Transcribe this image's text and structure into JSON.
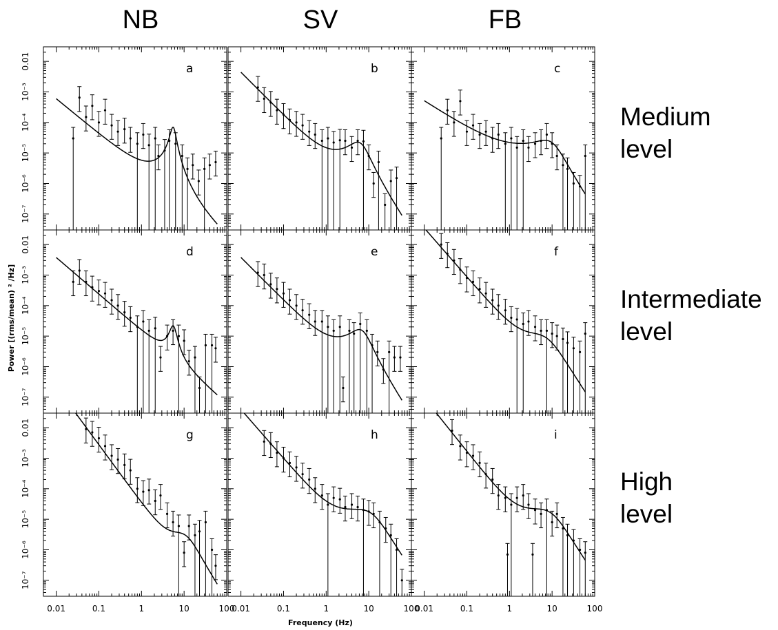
{
  "figure": {
    "column_titles": [
      "NB",
      "SV",
      "FB"
    ],
    "row_labels": [
      [
        "Medium",
        "level"
      ],
      [
        "Intermediate",
        "level"
      ],
      [
        "High",
        "level"
      ]
    ],
    "xlabel": "Frequency (Hz)",
    "ylabel": "Power [(rms/mean) ² /Hz]",
    "x_tick_labels": [
      "0.01",
      "0.1",
      "1",
      "10",
      "100"
    ],
    "y_tick_labels": [
      "10⁻⁷",
      "10⁻⁶",
      "10⁻⁵",
      "10⁻⁴",
      "10⁻³",
      "0.01"
    ]
  },
  "chart_data": [
    {
      "type": "scatter",
      "panel": "a",
      "column": "NB",
      "row": "Medium level",
      "xscale": "log",
      "yscale": "log",
      "xlim": [
        0.005,
        100
      ],
      "ylim": [
        3e-08,
        0.03
      ],
      "points": [
        [
          0.025,
          3e-05
        ],
        [
          0.035,
          0.00065
        ],
        [
          0.05,
          0.00015
        ],
        [
          0.07,
          0.00035
        ],
        [
          0.1,
          0.0001
        ],
        [
          0.14,
          0.00025
        ],
        [
          0.2,
          8e-05
        ],
        [
          0.28,
          5e-05
        ],
        [
          0.4,
          6e-05
        ],
        [
          0.55,
          3e-05
        ],
        [
          0.8,
          2e-05
        ],
        [
          1.1,
          4e-05
        ],
        [
          1.5,
          1.8e-05
        ],
        [
          2.1,
          3e-05
        ],
        [
          2.5,
          8e-06
        ],
        [
          3.5,
          1.2e-05
        ],
        [
          4.5,
          2.5e-05
        ],
        [
          6.3,
          2e-05
        ],
        [
          9,
          8e-06
        ],
        [
          12,
          3e-06
        ],
        [
          16,
          4e-06
        ],
        [
          22,
          1.2e-06
        ],
        [
          30,
          3e-06
        ],
        [
          40,
          4e-06
        ],
        [
          55,
          5e-06
        ]
      ],
      "model": {
        "powerlaw_norm": 3e-06,
        "powerlaw_index": 1.15,
        "lorentz_amp": 7e-05,
        "lorentz_freq": 5.5,
        "lorentz_q": 3,
        "cutoff": null
      }
    },
    {
      "type": "scatter",
      "panel": "b",
      "column": "SV",
      "row": "Medium level",
      "xscale": "log",
      "yscale": "log",
      "xlim": [
        0.005,
        100
      ],
      "ylim": [
        3e-08,
        0.03
      ],
      "points": [
        [
          0.025,
          0.0014
        ],
        [
          0.035,
          0.0006
        ],
        [
          0.05,
          0.00045
        ],
        [
          0.07,
          0.00025
        ],
        [
          0.1,
          0.00018
        ],
        [
          0.14,
          0.00012
        ],
        [
          0.2,
          0.0001
        ],
        [
          0.28,
          8e-05
        ],
        [
          0.4,
          5e-05
        ],
        [
          0.55,
          4e-05
        ],
        [
          0.8,
          2.5e-05
        ],
        [
          1.1,
          3e-05
        ],
        [
          1.5,
          2.2e-05
        ],
        [
          2.1,
          2.6e-05
        ],
        [
          2.8,
          2.5e-05
        ],
        [
          4,
          1.5e-05
        ],
        [
          5.5,
          2.5e-05
        ],
        [
          7.5,
          2.4e-05
        ],
        [
          10,
          8e-06
        ],
        [
          13,
          1e-06
        ],
        [
          17,
          5e-06
        ],
        [
          24,
          2e-07
        ],
        [
          33,
          1.2e-06
        ],
        [
          45,
          1.5e-06
        ]
      ],
      "model": {
        "powerlaw_norm": 7e-06,
        "powerlaw_index": 1.4,
        "lorentz_amp": 2.2e-05,
        "lorentz_freq": 5.5,
        "lorentz_q": 0.8,
        "cutoff": 30
      }
    },
    {
      "type": "scatter",
      "panel": "c",
      "column": "FB",
      "row": "Medium level",
      "xscale": "log",
      "yscale": "log",
      "xlim": [
        0.005,
        100
      ],
      "ylim": [
        3e-08,
        0.03
      ],
      "points": [
        [
          0.025,
          3e-05
        ],
        [
          0.035,
          0.00025
        ],
        [
          0.05,
          0.0001
        ],
        [
          0.07,
          0.0005
        ],
        [
          0.1,
          5e-05
        ],
        [
          0.14,
          8e-05
        ],
        [
          0.2,
          4e-05
        ],
        [
          0.28,
          5e-05
        ],
        [
          0.4,
          3e-05
        ],
        [
          0.55,
          4e-05
        ],
        [
          0.8,
          2e-05
        ],
        [
          1.1,
          3e-05
        ],
        [
          1.5,
          1.5e-05
        ],
        [
          2.1,
          2.5e-05
        ],
        [
          2.8,
          1.5e-05
        ],
        [
          4,
          2e-05
        ],
        [
          5.5,
          2.5e-05
        ],
        [
          7.5,
          4e-05
        ],
        [
          10,
          2e-05
        ],
        [
          13,
          8e-06
        ],
        [
          18,
          4e-06
        ],
        [
          23,
          3e-06
        ],
        [
          32,
          1e-06
        ],
        [
          45,
          8e-07
        ],
        [
          60,
          8e-06
        ]
      ],
      "model": {
        "powerlaw_norm": 8e-06,
        "powerlaw_index": 0.9,
        "lorentz_amp": 2.5e-05,
        "lorentz_freq": 7,
        "lorentz_q": 0.5,
        "cutoff": 25
      }
    },
    {
      "type": "scatter",
      "panel": "d",
      "column": "NB",
      "row": "Intermediate level",
      "xscale": "log",
      "yscale": "log",
      "xlim": [
        0.005,
        100
      ],
      "ylim": [
        3e-08,
        0.03
      ],
      "points": [
        [
          0.025,
          0.0006
        ],
        [
          0.035,
          0.0014
        ],
        [
          0.05,
          0.0006
        ],
        [
          0.07,
          0.0004
        ],
        [
          0.1,
          0.0003
        ],
        [
          0.14,
          0.00025
        ],
        [
          0.2,
          0.00015
        ],
        [
          0.28,
          0.0001
        ],
        [
          0.4,
          6e-05
        ],
        [
          0.55,
          4e-05
        ],
        [
          0.8,
          2e-05
        ],
        [
          1.1,
          3e-05
        ],
        [
          1.5,
          1.5e-05
        ],
        [
          2.1,
          1.8e-05
        ],
        [
          2.8,
          2e-06
        ],
        [
          4,
          1e-05
        ],
        [
          5.5,
          1.5e-05
        ],
        [
          7.5,
          1e-05
        ],
        [
          10,
          7e-06
        ],
        [
          13,
          1.5e-06
        ],
        [
          18,
          2e-06
        ],
        [
          23,
          2e-07
        ],
        [
          32,
          5e-06
        ],
        [
          45,
          5e-06
        ],
        [
          55,
          4e-06
        ]
      ],
      "model": {
        "powerlaw_norm": 1.5e-05,
        "powerlaw_index": 1.2,
        "lorentz_amp": 2e-05,
        "lorentz_freq": 5.5,
        "lorentz_q": 2.5,
        "cutoff": null
      }
    },
    {
      "type": "scatter",
      "panel": "e",
      "column": "SV",
      "row": "Intermediate level",
      "xscale": "log",
      "yscale": "log",
      "xlim": [
        0.005,
        100
      ],
      "ylim": [
        3e-08,
        0.03
      ],
      "points": [
        [
          0.025,
          0.0012
        ],
        [
          0.035,
          0.001
        ],
        [
          0.05,
          0.0005
        ],
        [
          0.07,
          0.00035
        ],
        [
          0.1,
          0.00025
        ],
        [
          0.14,
          0.00015
        ],
        [
          0.2,
          0.0001
        ],
        [
          0.28,
          7e-05
        ],
        [
          0.4,
          5e-05
        ],
        [
          0.55,
          3e-05
        ],
        [
          0.8,
          3e-05
        ],
        [
          1.1,
          2e-05
        ],
        [
          1.5,
          1.5e-05
        ],
        [
          2.1,
          2e-05
        ],
        [
          2.5,
          2e-07
        ],
        [
          3.5,
          1.5e-05
        ],
        [
          4.5,
          1.2e-05
        ],
        [
          6.3,
          2.5e-05
        ],
        [
          9,
          1.5e-05
        ],
        [
          12,
          5e-06
        ],
        [
          16,
          3e-06
        ],
        [
          22,
          8e-07
        ],
        [
          30,
          3e-06
        ],
        [
          40,
          2e-06
        ],
        [
          55,
          2e-06
        ]
      ],
      "model": {
        "powerlaw_norm": 6e-06,
        "powerlaw_index": 1.4,
        "lorentz_amp": 1.6e-05,
        "lorentz_freq": 6,
        "lorentz_q": 0.8,
        "cutoff": 30
      }
    },
    {
      "type": "scatter",
      "panel": "f",
      "column": "FB",
      "row": "Intermediate level",
      "xscale": "log",
      "yscale": "log",
      "xlim": [
        0.005,
        100
      ],
      "ylim": [
        3e-08,
        0.03
      ],
      "points": [
        [
          0.025,
          0.01
        ],
        [
          0.035,
          0.005
        ],
        [
          0.05,
          0.003
        ],
        [
          0.07,
          0.0015
        ],
        [
          0.1,
          0.0008
        ],
        [
          0.14,
          0.0006
        ],
        [
          0.2,
          0.00035
        ],
        [
          0.28,
          0.00025
        ],
        [
          0.4,
          0.00015
        ],
        [
          0.55,
          0.0001
        ],
        [
          0.8,
          7e-05
        ],
        [
          1.1,
          4e-05
        ],
        [
          1.5,
          3.5e-05
        ],
        [
          2.1,
          2.5e-05
        ],
        [
          2.8,
          3e-05
        ],
        [
          4,
          2e-05
        ],
        [
          5.5,
          1.5e-05
        ],
        [
          7.5,
          1.5e-05
        ],
        [
          10,
          1.2e-05
        ],
        [
          13,
          1e-05
        ],
        [
          18,
          8e-06
        ],
        [
          23,
          6e-06
        ],
        [
          32,
          4e-06
        ],
        [
          45,
          3e-06
        ],
        [
          60,
          1.2e-05
        ]
      ],
      "model": {
        "powerlaw_norm": 2.2e-05,
        "powerlaw_index": 1.6,
        "lorentz_amp": 1e-05,
        "lorentz_freq": 4,
        "lorentz_q": 0.3,
        "cutoff": 45
      }
    },
    {
      "type": "scatter",
      "panel": "g",
      "column": "NB",
      "row": "High level",
      "xscale": "log",
      "yscale": "log",
      "xlim": [
        0.005,
        100
      ],
      "ylim": [
        3e-08,
        0.03
      ],
      "points": [
        [
          0.05,
          0.009
        ],
        [
          0.07,
          0.007
        ],
        [
          0.1,
          0.0045
        ],
        [
          0.14,
          0.0025
        ],
        [
          0.2,
          0.0012
        ],
        [
          0.28,
          0.0009
        ],
        [
          0.4,
          0.0006
        ],
        [
          0.55,
          0.0004
        ],
        [
          0.8,
          0.0001
        ],
        [
          1.1,
          8e-05
        ],
        [
          1.5,
          9e-05
        ],
        [
          2.1,
          4e-05
        ],
        [
          2.8,
          6e-05
        ],
        [
          4,
          1.5e-05
        ],
        [
          5.5,
          8e-06
        ],
        [
          7.5,
          6e-06
        ],
        [
          10,
          8e-07
        ],
        [
          13,
          6e-06
        ],
        [
          18,
          3e-06
        ],
        [
          23,
          4e-06
        ],
        [
          32,
          8e-06
        ],
        [
          45,
          1e-06
        ],
        [
          55,
          3e-07
        ]
      ],
      "model": {
        "powerlaw_norm": 3.5e-05,
        "powerlaw_index": 1.9,
        "lorentz_amp": 3e-06,
        "lorentz_freq": 8,
        "lorentz_q": 0.5,
        "cutoff": 60
      }
    },
    {
      "type": "scatter",
      "panel": "h",
      "column": "SV",
      "row": "High level",
      "xscale": "log",
      "yscale": "log",
      "xlim": [
        0.005,
        100
      ],
      "ylim": [
        3e-08,
        0.03
      ],
      "points": [
        [
          0.035,
          0.0035
        ],
        [
          0.05,
          0.003
        ],
        [
          0.07,
          0.0015
        ],
        [
          0.1,
          0.001
        ],
        [
          0.14,
          0.0007
        ],
        [
          0.2,
          0.0005
        ],
        [
          0.28,
          0.0003
        ],
        [
          0.4,
          0.0002
        ],
        [
          0.55,
          0.0001
        ],
        [
          0.8,
          6e-05
        ],
        [
          1.1,
          3e-05
        ],
        [
          1.5,
          5e-05
        ],
        [
          2.1,
          4.5e-05
        ],
        [
          2.8,
          2.5e-05
        ],
        [
          4,
          3e-05
        ],
        [
          5.5,
          2.5e-05
        ],
        [
          7.5,
          2e-05
        ],
        [
          10,
          1.8e-05
        ],
        [
          13,
          1.5e-05
        ],
        [
          18,
          8e-06
        ],
        [
          25,
          5e-06
        ],
        [
          33,
          3e-06
        ],
        [
          45,
          1e-06
        ],
        [
          60,
          1e-07
        ]
      ],
      "model": {
        "powerlaw_norm": 2.5e-05,
        "powerlaw_index": 1.6,
        "lorentz_amp": 2e-05,
        "lorentz_freq": 6,
        "lorentz_q": 0.3,
        "cutoff": 18
      }
    },
    {
      "type": "scatter",
      "panel": "i",
      "column": "FB",
      "row": "High level",
      "xscale": "log",
      "yscale": "log",
      "xlim": [
        0.005,
        100
      ],
      "ylim": [
        3e-08,
        0.03
      ],
      "points": [
        [
          0.045,
          0.008
        ],
        [
          0.07,
          0.0025
        ],
        [
          0.1,
          0.0015
        ],
        [
          0.14,
          0.0012
        ],
        [
          0.2,
          0.0007
        ],
        [
          0.28,
          0.0003
        ],
        [
          0.4,
          0.0002
        ],
        [
          0.55,
          6e-05
        ],
        [
          0.8,
          5e-05
        ],
        [
          0.9,
          7e-07
        ],
        [
          1.1,
          3e-05
        ],
        [
          1.5,
          5e-05
        ],
        [
          2.1,
          6e-05
        ],
        [
          2.8,
          3e-05
        ],
        [
          3.5,
          7e-07
        ],
        [
          4,
          2e-05
        ],
        [
          5.5,
          1.5e-05
        ],
        [
          7.5,
          2e-05
        ],
        [
          10,
          8e-06
        ],
        [
          13,
          1.5e-05
        ],
        [
          18,
          5e-06
        ],
        [
          23,
          3e-06
        ],
        [
          32,
          2e-06
        ],
        [
          45,
          1e-06
        ],
        [
          60,
          8e-07
        ]
      ],
      "model": {
        "powerlaw_norm": 3e-05,
        "powerlaw_index": 1.75,
        "lorentz_amp": 2e-05,
        "lorentz_freq": 5,
        "lorentz_q": 0.3,
        "cutoff": 40
      }
    }
  ]
}
